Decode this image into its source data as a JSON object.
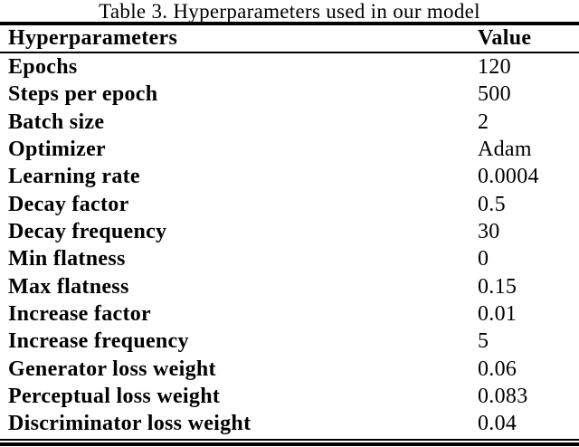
{
  "caption": "Table 3. Hyperparameters used in our model",
  "table": {
    "columns": [
      "Hyperparameters",
      "Value"
    ],
    "rows": [
      {
        "name": "Epochs",
        "value": "120"
      },
      {
        "name": "Steps per epoch",
        "value": "500"
      },
      {
        "name": "Batch size",
        "value": "2"
      },
      {
        "name": "Optimizer",
        "value": "Adam"
      },
      {
        "name": "Learning rate",
        "value": "0.0004"
      },
      {
        "name": "Decay factor",
        "value": "0.5"
      },
      {
        "name": "Decay frequency",
        "value": "30"
      },
      {
        "name": "Min flatness",
        "value": "0"
      },
      {
        "name": "Max flatness",
        "value": "0.15"
      },
      {
        "name": "Increase factor",
        "value": "0.01"
      },
      {
        "name": "Increase frequency",
        "value": "5"
      },
      {
        "name": "Generator loss weight",
        "value": "0.06"
      },
      {
        "name": "Perceptual loss weight",
        "value": "0.083"
      },
      {
        "name": "Discriminator loss weight",
        "value": "0.04"
      }
    ]
  },
  "colors": {
    "text": "#000000",
    "background": "#ffffff",
    "rule": "#000000"
  }
}
